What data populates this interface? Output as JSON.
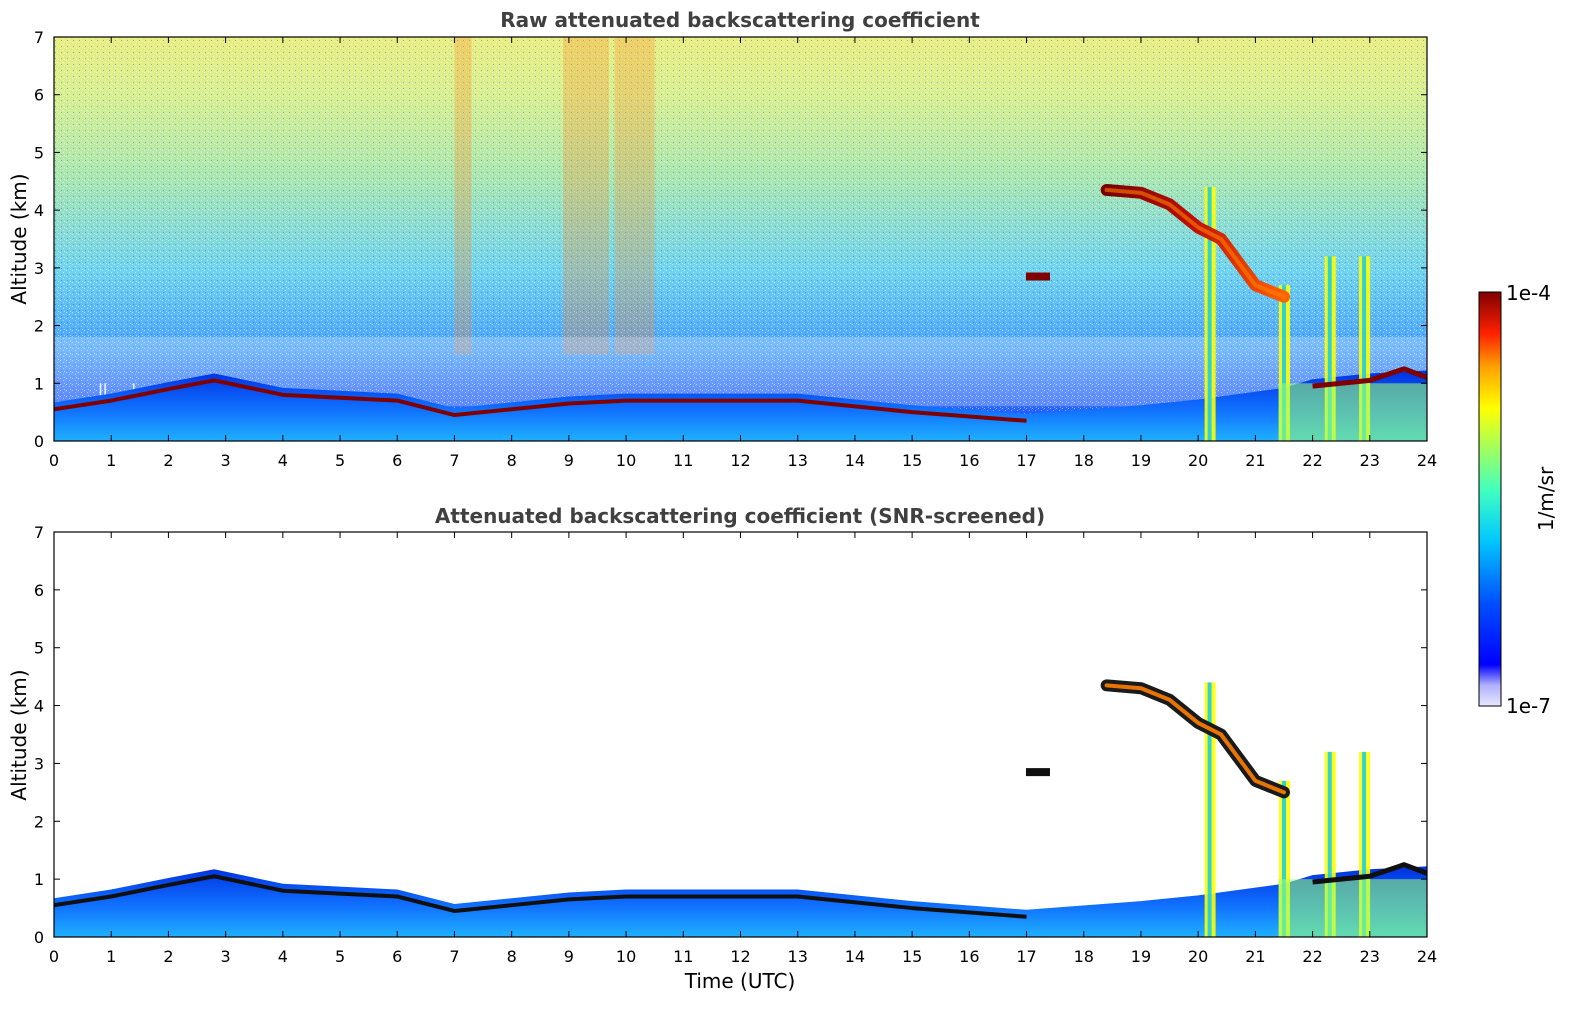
{
  "chart_data": [
    {
      "type": "heatmap",
      "title": "Raw attenuated backscattering coefficient",
      "xlabel": "",
      "ylabel": "Altitude (km)",
      "xlim": [
        0,
        24
      ],
      "ylim": [
        0,
        7
      ],
      "x_ticks": [
        "0",
        "1",
        "2",
        "3",
        "4",
        "5",
        "6",
        "7",
        "8",
        "9",
        "10",
        "11",
        "12",
        "13",
        "14",
        "15",
        "16",
        "17",
        "18",
        "19",
        "20",
        "21",
        "22",
        "23",
        "24"
      ],
      "y_ticks": [
        "0",
        "1",
        "2",
        "3",
        "4",
        "5",
        "6",
        "7"
      ],
      "features": {
        "boundary_layer_top_km": [
          [
            0,
            0.55
          ],
          [
            1,
            0.7
          ],
          [
            2,
            0.9
          ],
          [
            2.8,
            1.05
          ],
          [
            4,
            0.8
          ],
          [
            6,
            0.7
          ],
          [
            7,
            0.45
          ],
          [
            8,
            0.55
          ],
          [
            9,
            0.65
          ],
          [
            10,
            0.7
          ],
          [
            11,
            0.7
          ],
          [
            13,
            0.7
          ],
          [
            15,
            0.5
          ],
          [
            17,
            0.35
          ],
          [
            19,
            0.5
          ],
          [
            20,
            0.6
          ],
          [
            21.5,
            0.8
          ],
          [
            22,
            0.95
          ],
          [
            23,
            1.05
          ],
          [
            24,
            1.1
          ]
        ],
        "elevated_cloud_km": [
          [
            17.2,
            2.85
          ],
          [
            18.4,
            4.35
          ],
          [
            19,
            4.3
          ],
          [
            19.5,
            4.1
          ],
          [
            20,
            3.7
          ],
          [
            20.4,
            3.5
          ],
          [
            21,
            2.7
          ],
          [
            21.5,
            2.5
          ]
        ],
        "cloud_top_layer_km": [
          [
            22,
            0.95
          ],
          [
            23,
            1.05
          ],
          [
            23.6,
            1.25
          ],
          [
            24,
            1.1
          ]
        ],
        "precipitation_columns_hours": [
          20.2,
          21.5,
          22.3,
          22.9
        ]
      }
    },
    {
      "type": "heatmap",
      "title": "Attenuated backscattering coefficient (SNR-screened)",
      "xlabel": "Time (UTC)",
      "ylabel": "Altitude (km)",
      "xlim": [
        0,
        24
      ],
      "ylim": [
        0,
        7
      ],
      "x_ticks": [
        "0",
        "1",
        "2",
        "3",
        "4",
        "5",
        "6",
        "7",
        "8",
        "9",
        "10",
        "11",
        "12",
        "13",
        "14",
        "15",
        "16",
        "17",
        "18",
        "19",
        "20",
        "21",
        "22",
        "23",
        "24"
      ],
      "y_ticks": [
        "0",
        "1",
        "2",
        "3",
        "4",
        "5",
        "6",
        "7"
      ]
    }
  ],
  "colorbar": {
    "label": "1/m/sr",
    "max_label": "1e-4",
    "min_label": "1e-7",
    "scale": "log",
    "range": [
      1e-07,
      0.0001
    ]
  },
  "colors": {
    "low": "#e8e8ff",
    "blue": "#0000ff",
    "cyan": "#00c8ff",
    "green": "#7fff7f",
    "yellow": "#ffff00",
    "orange": "#ff8000",
    "red": "#ff0000",
    "dark_red": "#800000"
  }
}
